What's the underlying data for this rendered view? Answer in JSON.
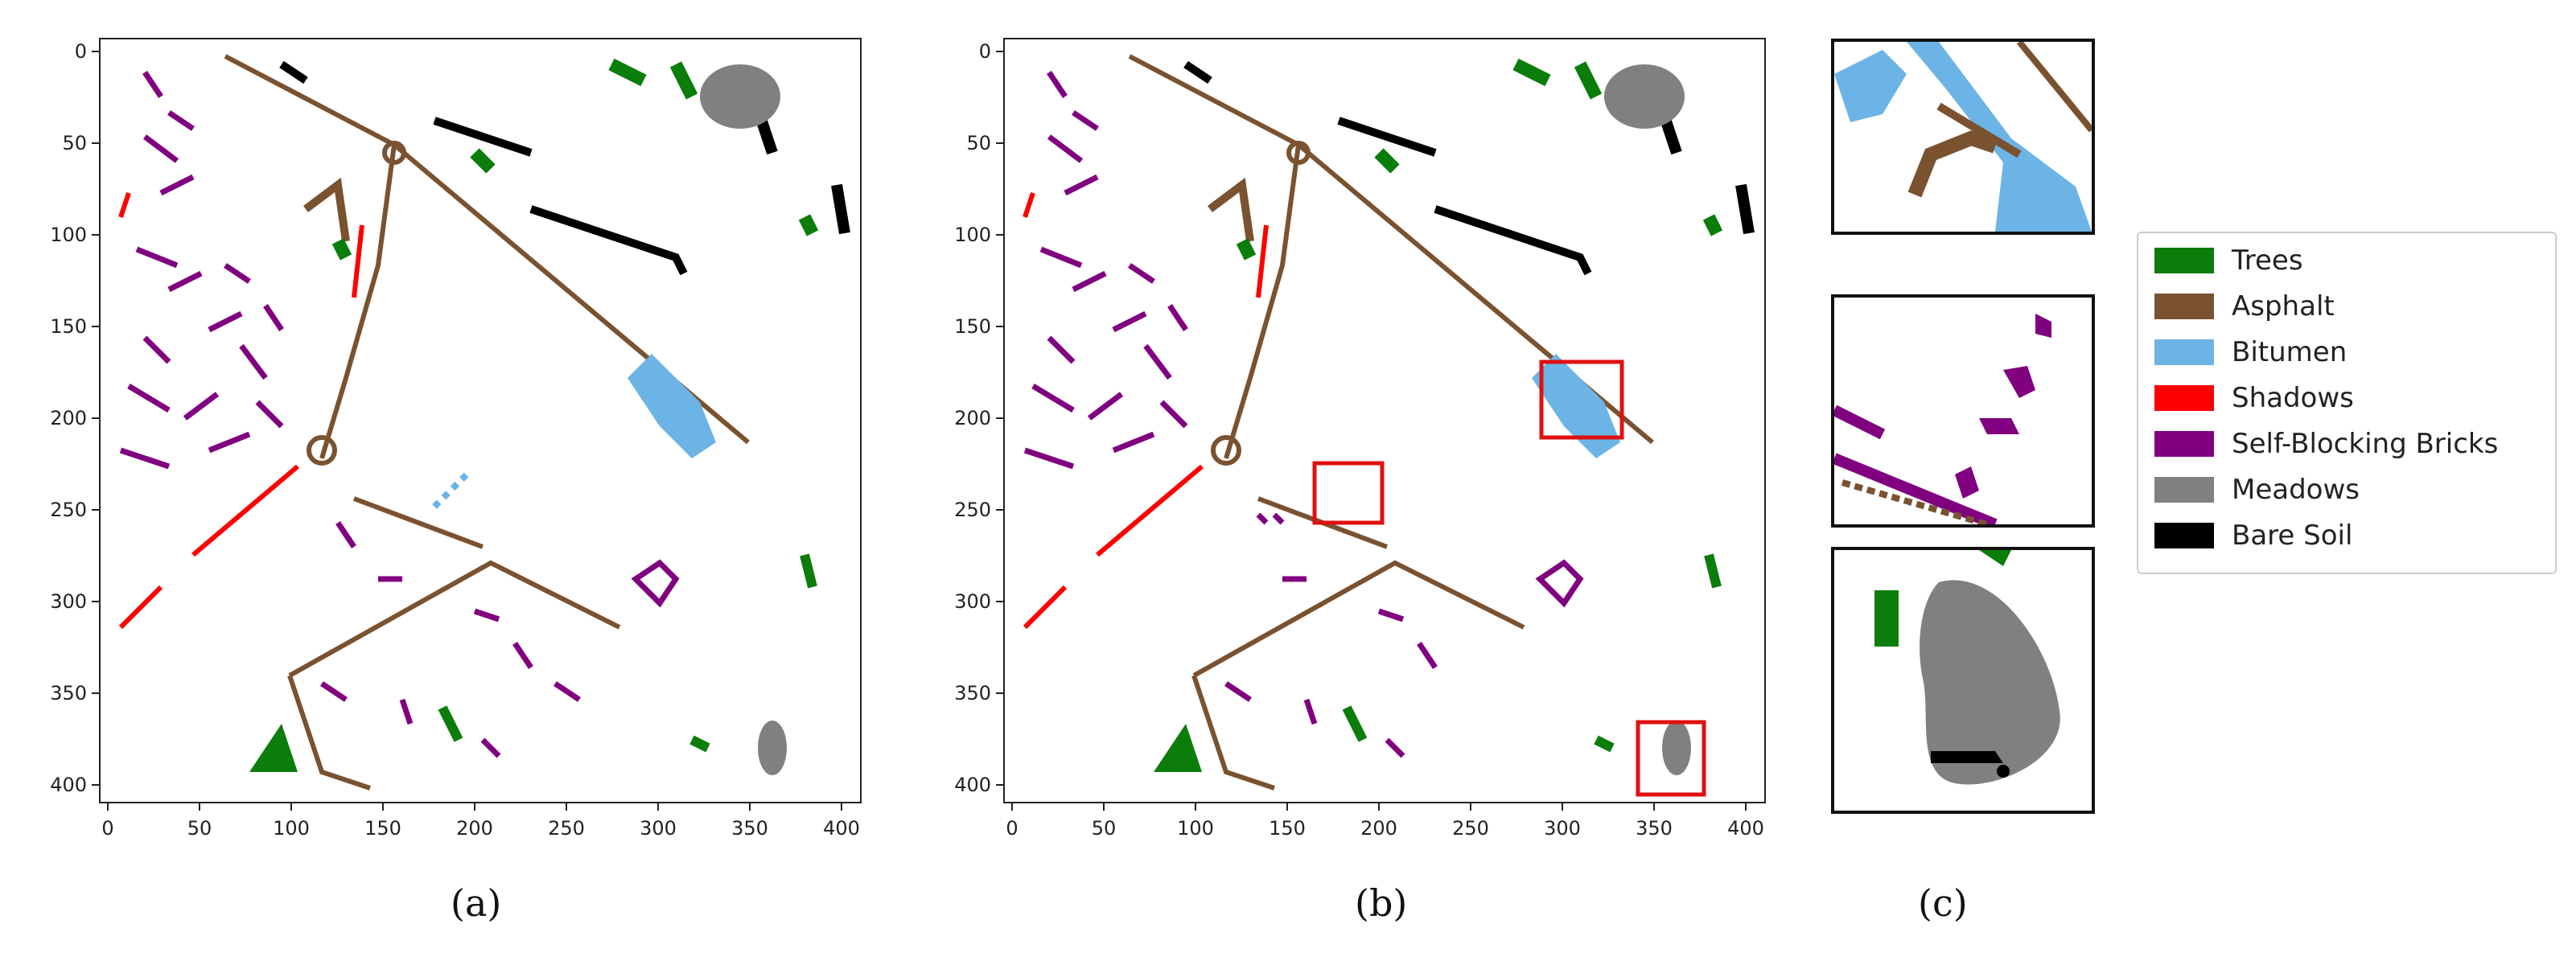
{
  "panels": {
    "a": {
      "label": "(a)"
    },
    "b": {
      "label": "(b)"
    },
    "c": {
      "label": "(c)"
    }
  },
  "axes": {
    "x_ticks": [
      "0",
      "50",
      "100",
      "150",
      "200",
      "250",
      "300",
      "350",
      "400"
    ],
    "y_ticks": [
      "0",
      "50",
      "100",
      "150",
      "200",
      "250",
      "300",
      "350",
      "400"
    ]
  },
  "legend": {
    "items": [
      {
        "label": "Trees",
        "color": "#0a7d0a"
      },
      {
        "label": "Asphalt",
        "color": "#7a5230"
      },
      {
        "label": "Bitumen",
        "color": "#6cb4e6"
      },
      {
        "label": "Shadows",
        "color": "#ff0000"
      },
      {
        "label": "Self-Blocking Bricks",
        "color": "#800080"
      },
      {
        "label": "Meadows",
        "color": "#808080"
      },
      {
        "label": "Bare Soil",
        "color": "#000000"
      }
    ]
  },
  "highlight_color": "#e01010"
}
